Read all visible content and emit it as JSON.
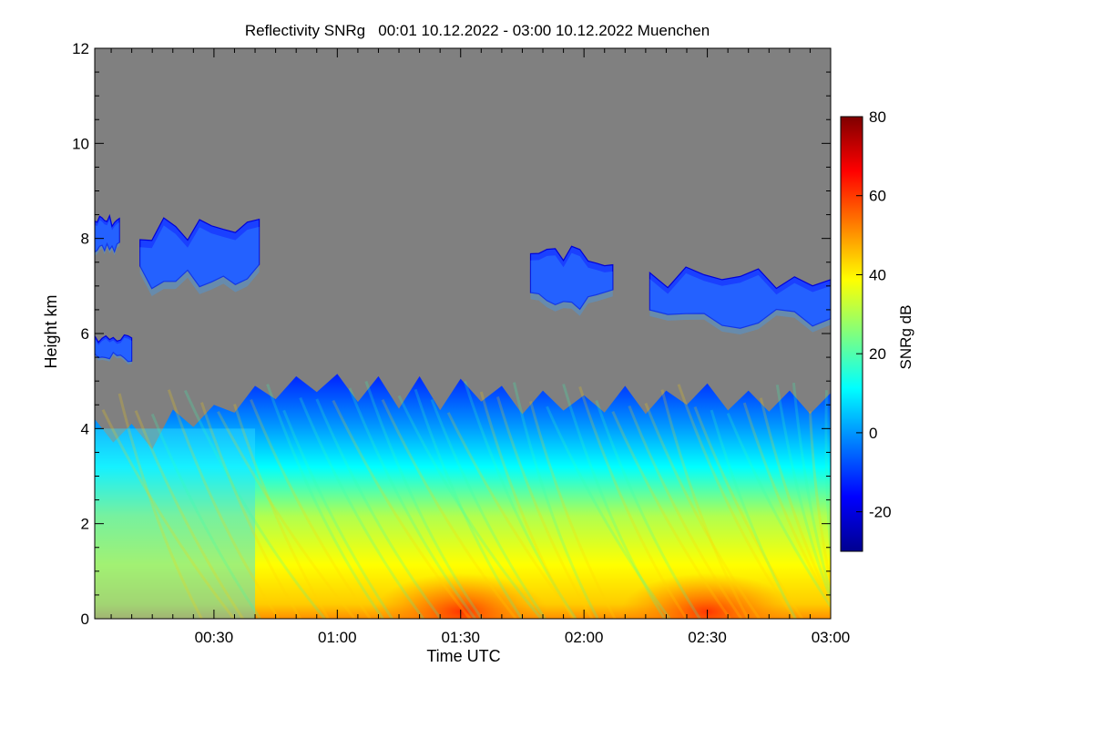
{
  "chart_data": {
    "type": "heatmap",
    "title": "Reflectivity SNRg   00:01 10.12.2022 - 03:00 10.12.2022 Muenchen",
    "xlabel": "Time UTC",
    "ylabel": "Height km",
    "xlim_minutes_utc": [
      1,
      180
    ],
    "x_ticks": [
      {
        "minute": 30,
        "label": "00:30"
      },
      {
        "minute": 60,
        "label": "01:00"
      },
      {
        "minute": 90,
        "label": "01:30"
      },
      {
        "minute": 120,
        "label": "02:00"
      },
      {
        "minute": 150,
        "label": "02:30"
      },
      {
        "minute": 180,
        "label": "03:00"
      }
    ],
    "ylim": [
      0,
      12
    ],
    "y_ticks": [
      0,
      2,
      4,
      6,
      8,
      10,
      12
    ],
    "background_no_signal_color": "#808080",
    "colorbar": {
      "label": "SNRg dB",
      "range": [
        -30,
        80
      ],
      "ticks": [
        -20,
        0,
        20,
        40,
        60,
        80
      ],
      "colormap": [
        "#00008f",
        "#0000ff",
        "#007fff",
        "#00ffff",
        "#7fff7f",
        "#ffff00",
        "#ff7f00",
        "#ff0000",
        "#7f0000"
      ]
    },
    "features": {
      "precip_top_km": [
        {
          "minute": 1,
          "km": 4.2
        },
        {
          "minute": 10,
          "km": 4.1
        },
        {
          "minute": 20,
          "km": 4.4
        },
        {
          "minute": 30,
          "km": 4.5
        },
        {
          "minute": 40,
          "km": 4.9
        },
        {
          "minute": 50,
          "km": 5.1
        },
        {
          "minute": 60,
          "km": 5.15
        },
        {
          "minute": 70,
          "km": 5.1
        },
        {
          "minute": 80,
          "km": 5.1
        },
        {
          "minute": 90,
          "km": 5.05
        },
        {
          "minute": 100,
          "km": 4.9
        },
        {
          "minute": 110,
          "km": 4.8
        },
        {
          "minute": 120,
          "km": 4.7
        },
        {
          "minute": 130,
          "km": 4.9
        },
        {
          "minute": 140,
          "km": 4.8
        },
        {
          "minute": 150,
          "km": 4.95
        },
        {
          "minute": 160,
          "km": 4.8
        },
        {
          "minute": 170,
          "km": 4.8
        },
        {
          "minute": 180,
          "km": 4.75
        }
      ],
      "near_surface_max_minutes": [
        90,
        150
      ],
      "upper_cloud_layers": [
        {
          "start_minute": 1,
          "end_minute": 7,
          "base_km": 7.7,
          "top_km": 8.5
        },
        {
          "start_minute": 12,
          "end_minute": 41,
          "base_km": 6.9,
          "top_km": 8.5
        },
        {
          "start_minute": 1,
          "end_minute": 10,
          "base_km": 5.4,
          "top_km": 6.0
        },
        {
          "start_minute": 107,
          "end_minute": 127,
          "base_km": 6.5,
          "top_km": 7.9
        },
        {
          "start_minute": 136,
          "end_minute": 180,
          "base_km": 6.1,
          "top_km": 7.4
        }
      ]
    }
  }
}
